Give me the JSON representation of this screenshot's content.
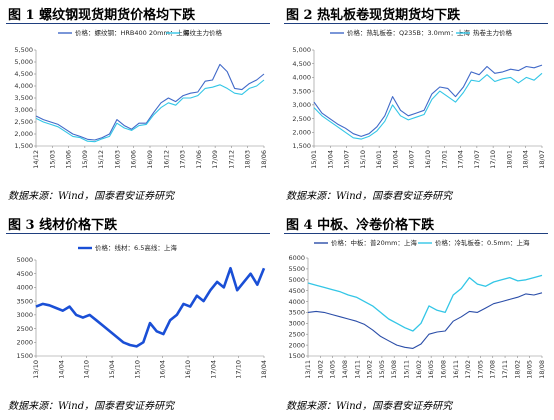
{
  "panels": [
    {
      "title": "图 1 螺纹钢现货期货价格均下跌",
      "source": "数据来源：Wind，国泰君安证券研究",
      "chart_data": {
        "type": "line",
        "title": "图 1 螺纹钢现货期货价格均下跌",
        "ylim": [
          1500,
          5500
        ],
        "y_ticks": [
          1500,
          2000,
          2500,
          3000,
          3500,
          4000,
          4500,
          5000,
          5500
        ],
        "y_tick_labels": [
          "1,500",
          "2,000",
          "2,500",
          "3,000",
          "3,500",
          "4,000",
          "4,500",
          "5,000",
          "5,500"
        ],
        "x_tick_labels": [
          "14/12",
          "15/03",
          "15/06",
          "15/09",
          "15/12",
          "16/03",
          "16/06",
          "16/09",
          "16/12",
          "17/03",
          "17/06",
          "17/09",
          "17/12",
          "18/03",
          "18/06"
        ],
        "legend_position": "top",
        "series": [
          {
            "name": "价格：螺纹钢：HRB400 20mm：上海",
            "color": "#4169c8",
            "values": [
              2750,
              2600,
              2500,
              2400,
              2200,
              2000,
              1900,
              1780,
              1750,
              1850,
              2000,
              2600,
              2350,
              2200,
              2450,
              2450,
              2900,
              3300,
              3500,
              3350,
              3600,
              3700,
              3750,
              4200,
              4250,
              4900,
              4600,
              3900,
              3850,
              4100,
              4250,
              4500
            ]
          },
          {
            "name": "螺纹主力价格",
            "color": "#33c6e6",
            "values": [
              2650,
              2500,
              2400,
              2300,
              2100,
              1900,
              1850,
              1700,
              1680,
              1800,
              1900,
              2450,
              2250,
              2150,
              2350,
              2400,
              2800,
              3100,
              3300,
              3200,
              3500,
              3500,
              3600,
              3900,
              3950,
              4050,
              3900,
              3700,
              3650,
              3900,
              4000,
              4250
            ]
          }
        ]
      }
    },
    {
      "title": "图 2 热轧板卷现货期货均下跌",
      "source": "数据来源：Wind，国泰君安证券研究",
      "chart_data": {
        "type": "line",
        "title": "图 2 热轧板卷现货期货均下跌",
        "ylim": [
          1500,
          5000
        ],
        "y_ticks": [
          1500,
          2000,
          2500,
          3000,
          3500,
          4000,
          4500,
          5000
        ],
        "y_tick_labels": [
          "1,500",
          "2,000",
          "2,500",
          "3,000",
          "3,500",
          "4,000",
          "4,500",
          "5,000"
        ],
        "x_tick_labels": [
          "15/01",
          "15/04",
          "15/07",
          "15/10",
          "16/01",
          "16/04",
          "16/07",
          "16/10",
          "17/01",
          "17/04",
          "17/07",
          "17/10",
          "18/01",
          "18/04",
          "18/07"
        ],
        "legend_position": "top",
        "series": [
          {
            "name": "价格：热轧板卷：Q235B：3.0mm：上海",
            "color": "#4169c8",
            "values": [
              3100,
              2700,
              2500,
              2300,
              2150,
              1950,
              1850,
              1950,
              2200,
              2600,
              3300,
              2800,
              2600,
              2700,
              2800,
              3400,
              3650,
              3600,
              3300,
              3650,
              4200,
              4100,
              4400,
              4150,
              4200,
              4300,
              4250,
              4400,
              4350,
              4450
            ]
          },
          {
            "name": "热卷主力价格",
            "color": "#33c6e6",
            "values": [
              2900,
              2600,
              2400,
              2200,
              2000,
              1800,
              1750,
              1850,
              2050,
              2400,
              3000,
              2600,
              2450,
              2550,
              2650,
              3200,
              3500,
              3300,
              3100,
              3450,
              3900,
              3850,
              4100,
              3850,
              3950,
              4000,
              3800,
              4000,
              3900,
              4150
            ]
          }
        ]
      }
    },
    {
      "title": "图 3 线材价格下跌",
      "source": "数据来源：Wind，国泰君安证券研究",
      "chart_data": {
        "type": "line",
        "title": "图 3 线材价格下跌",
        "ylim": [
          1500,
          5000
        ],
        "y_ticks": [
          1500,
          2000,
          2500,
          3000,
          3500,
          4000,
          4500,
          5000
        ],
        "y_tick_labels": [
          "1500",
          "2000",
          "2500",
          "3000",
          "3500",
          "4000",
          "4500",
          "5000"
        ],
        "x_tick_labels": [
          "13/10",
          "14/04",
          "14/10",
          "15/04",
          "15/10",
          "16/04",
          "16/10",
          "17/04",
          "17/10",
          "18/04"
        ],
        "legend_position": "top",
        "series": [
          {
            "name": "价格：线材：6.5高线：上海",
            "color": "#1a4fd6",
            "values": [
              3300,
              3400,
              3350,
              3250,
              3150,
              3300,
              3000,
              2900,
              3000,
              2800,
              2600,
              2400,
              2200,
              2000,
              1900,
              1850,
              2000,
              2700,
              2400,
              2300,
              2800,
              3000,
              3400,
              3300,
              3700,
              3500,
              3900,
              4200,
              4000,
              4700,
              3900,
              4200,
              4500,
              4100,
              4700
            ]
          }
        ]
      }
    },
    {
      "title": "图 4 中板、冷卷价格下跌",
      "source": "数据来源：Wind，国泰君安证券研究",
      "chart_data": {
        "type": "line",
        "title": "图 4 中板、冷卷价格下跌",
        "ylim": [
          1500,
          6000
        ],
        "y_ticks": [
          1500,
          2000,
          2500,
          3000,
          3500,
          4000,
          4500,
          5000,
          5500,
          6000
        ],
        "y_tick_labels": [
          "1500",
          "2000",
          "2500",
          "3000",
          "3500",
          "4000",
          "4500",
          "5000",
          "5500",
          "6000"
        ],
        "x_tick_labels": [
          "13/11",
          "14/02",
          "14/05",
          "14/08",
          "14/11",
          "15/02",
          "15/05",
          "15/08",
          "15/11",
          "16/02",
          "16/05",
          "16/08",
          "16/11",
          "17/02",
          "17/05",
          "17/08",
          "17/11",
          "18/02",
          "18/05",
          "18/08"
        ],
        "legend_position": "top",
        "series": [
          {
            "name": "价格：中板：普20mm：上海",
            "color": "#2a4da8",
            "values": [
              3500,
              3550,
              3500,
              3400,
              3300,
              3200,
              3100,
              2950,
              2700,
              2400,
              2200,
              2000,
              1900,
              1850,
              2050,
              2500,
              2600,
              2650,
              3100,
              3300,
              3550,
              3500,
              3700,
              3900,
              4000,
              4100,
              4200,
              4350,
              4300,
              4400
            ]
          },
          {
            "name": "价格：冷轧板卷：0.5mm：上海",
            "color": "#33c6e6",
            "values": [
              4850,
              4750,
              4650,
              4550,
              4450,
              4300,
              4200,
              4000,
              3800,
              3500,
              3200,
              3000,
              2800,
              2650,
              3000,
              3800,
              3600,
              3500,
              4300,
              4600,
              5100,
              4800,
              4700,
              4900,
              5000,
              5100,
              4950,
              5000,
              5100,
              5200
            ]
          }
        ]
      }
    }
  ]
}
